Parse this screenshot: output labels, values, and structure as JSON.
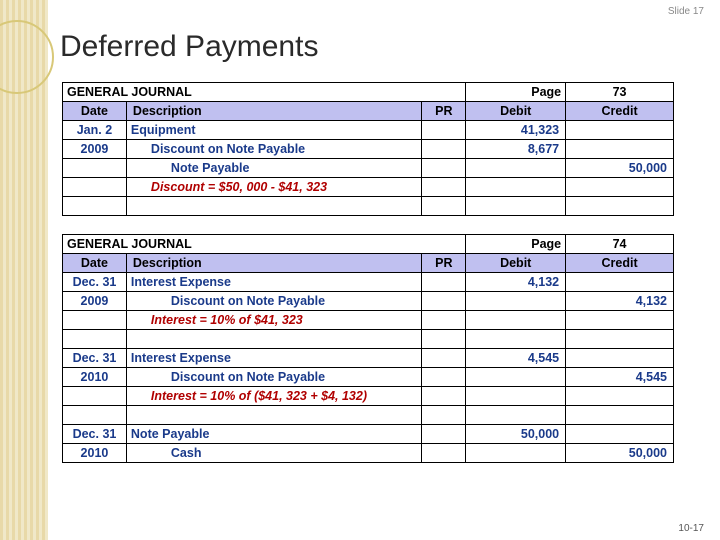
{
  "slide_label": "Slide 17",
  "footer": "10-17",
  "title": "Deferred Payments",
  "journal1": {
    "heading": "GENERAL JOURNAL",
    "page_label": "Page",
    "page_num": "73",
    "columns": {
      "date": "Date",
      "desc": "Description",
      "pr": "PR",
      "debit": "Debit",
      "credit": "Credit"
    },
    "rows": [
      {
        "date": "Jan. 2",
        "desc": "Equipment",
        "debit": "41,323",
        "credit": "",
        "style": "blue"
      },
      {
        "date": "2009",
        "desc": "Discount on Note Payable",
        "debit": "8,677",
        "credit": "",
        "style": "blue",
        "indent": 1
      },
      {
        "date": "",
        "desc": "Note Payable",
        "debit": "",
        "credit": "50,000",
        "style": "blue",
        "indent": 2
      },
      {
        "date": "",
        "desc": "Discount = $50, 000  -  $41, 323",
        "debit": "",
        "credit": "",
        "style": "red",
        "indent": 1
      },
      {
        "date": "",
        "desc": "",
        "debit": "",
        "credit": ""
      }
    ]
  },
  "journal2": {
    "heading": "GENERAL JOURNAL",
    "page_label": "Page",
    "page_num": "74",
    "columns": {
      "date": "Date",
      "desc": "Description",
      "pr": "PR",
      "debit": "Debit",
      "credit": "Credit"
    },
    "rows": [
      {
        "date": "Dec. 31",
        "desc": "Interest Expense",
        "debit": "4,132",
        "credit": "",
        "style": "blue"
      },
      {
        "date": "2009",
        "desc": "Discount on Note Payable",
        "debit": "",
        "credit": "4,132",
        "style": "blue",
        "indent": 2
      },
      {
        "date": "",
        "desc": "Interest = 10% of $41, 323",
        "debit": "",
        "credit": "",
        "style": "red",
        "indent": 1
      },
      {
        "date": "",
        "desc": "",
        "debit": "",
        "credit": ""
      },
      {
        "date": "Dec. 31",
        "desc": "Interest Expense",
        "debit": "4,545",
        "credit": "",
        "style": "blue"
      },
      {
        "date": "2010",
        "desc": "Discount on Note Payable",
        "debit": "",
        "credit": "4,545",
        "style": "blue",
        "indent": 2
      },
      {
        "date": "",
        "desc": "Interest = 10% of ($41, 323 + $4, 132)",
        "debit": "",
        "credit": "",
        "style": "red",
        "indent": 1
      },
      {
        "date": "",
        "desc": "",
        "debit": "",
        "credit": ""
      },
      {
        "date": "Dec. 31",
        "desc": "Note Payable",
        "debit": "50,000",
        "credit": "",
        "style": "blue"
      },
      {
        "date": "2010",
        "desc": "Cash",
        "debit": "",
        "credit": "50,000",
        "style": "blue",
        "indent": 2
      }
    ]
  }
}
